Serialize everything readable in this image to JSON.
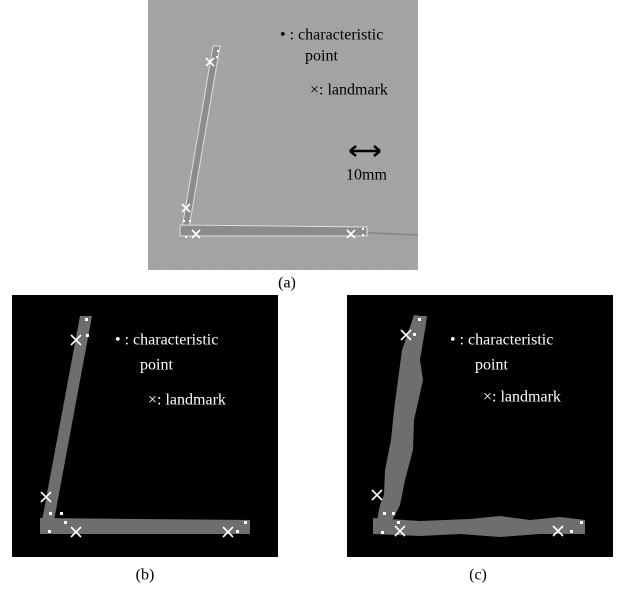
{
  "panels": [
    {
      "legend": {
        "line1": "• : characteristic",
        "line2": "point",
        "line3": "×: landmark"
      },
      "scale": "10mm",
      "caption": "(a)"
    },
    {
      "legend": {
        "line1": "• : characteristic",
        "line2": "point",
        "line3": "×: landmark"
      },
      "caption": "(b)"
    },
    {
      "legend": {
        "line1": "• : characteristic",
        "line2": "point",
        "line3": "×: landmark"
      },
      "caption": "(c)"
    }
  ]
}
